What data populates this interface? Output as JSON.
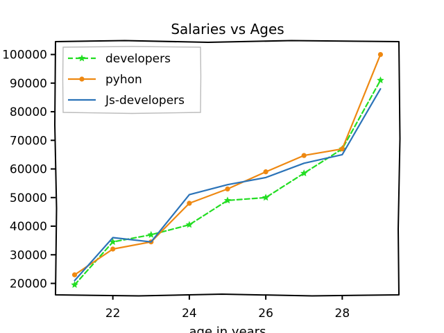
{
  "chart_data": {
    "type": "line",
    "title": "Salaries vs Ages",
    "xlabel": "age in years",
    "ylabel": "",
    "x": [
      21,
      22,
      23,
      24,
      25,
      26,
      27,
      28,
      29
    ],
    "xticks": [
      "22",
      "24",
      "26",
      "28"
    ],
    "xtick_values": [
      22,
      24,
      26,
      28
    ],
    "yticks": [
      "20000",
      "30000",
      "40000",
      "50000",
      "60000",
      "70000",
      "80000",
      "90000",
      "100000"
    ],
    "ytick_values": [
      20000,
      30000,
      40000,
      50000,
      60000,
      70000,
      80000,
      90000,
      100000
    ],
    "xlim": [
      20.5,
      29.5
    ],
    "ylim": [
      16000,
      104500
    ],
    "grid": false,
    "legend_position": "top-left",
    "series": [
      {
        "name": "developers",
        "values": [
          19500,
          34500,
          37000,
          40500,
          49000,
          50000,
          58500,
          67000,
          91000
        ],
        "color": "#22dd22",
        "style": "dashed",
        "marker": "star"
      },
      {
        "name": "pyhon",
        "values": [
          23000,
          32000,
          34500,
          48000,
          53000,
          59000,
          64700,
          67000,
          100000
        ],
        "color": "#ee8811",
        "style": "solid",
        "marker": "dot"
      },
      {
        "name": "Js-developers",
        "values": [
          21000,
          36000,
          34500,
          51000,
          54500,
          57000,
          62000,
          65000,
          88000
        ],
        "color": "#2b73b8",
        "style": "solid",
        "marker": "none"
      }
    ]
  }
}
